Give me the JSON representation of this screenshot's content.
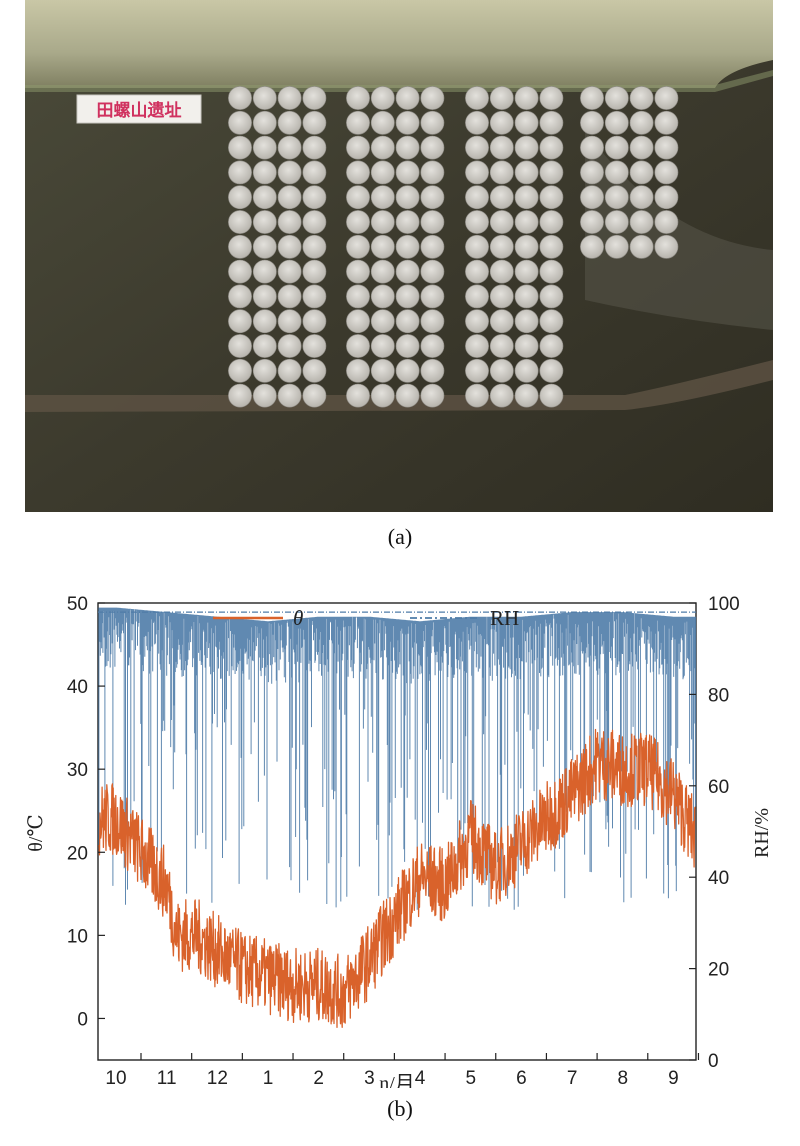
{
  "figure": {
    "panel_a_label": "(a)",
    "panel_b_label": "(b)",
    "site_sign": "田螺山遗址"
  },
  "photo": {
    "subject": "sample discs on soil",
    "block_columns": [
      4,
      4,
      4,
      4
    ],
    "block_rows": [
      13,
      13,
      13,
      7
    ],
    "colors": {
      "soil_dark": "#3c3a2d",
      "rock_top": "#a8aa8a",
      "disc": "#d4d2cc",
      "sign_text": "#d0315f"
    }
  },
  "chart_data": {
    "type": "line",
    "title": "",
    "xlabel": "n/月",
    "ylabel_left": "θ/℃",
    "ylabel_right": "RH/%",
    "x_ticks": [
      "10",
      "11",
      "12",
      "1",
      "2",
      "3",
      "4",
      "5",
      "6",
      "7",
      "8",
      "9"
    ],
    "ylim_left": [
      -5,
      50
    ],
    "yticks_left": [
      0,
      10,
      20,
      30,
      40,
      50
    ],
    "ylim_right": [
      0,
      100
    ],
    "yticks_right": [
      0,
      20,
      40,
      60,
      80,
      100
    ],
    "legend_position": "top",
    "grid": false,
    "series": [
      {
        "name": "θ",
        "axis": "left",
        "color": "#d9622b",
        "style": "solid",
        "x_month_index": [
          0,
          0.5,
          1,
          1.2,
          1.6,
          2,
          2.5,
          3,
          3.5,
          4,
          4.5,
          5,
          5.5,
          6,
          6.5,
          7,
          7.5,
          8,
          8.5,
          9,
          9.5,
          10,
          10.5,
          11,
          11.5,
          12
        ],
        "values": [
          24,
          20,
          16,
          10,
          10,
          8,
          6,
          5,
          4,
          4,
          3,
          7,
          12,
          17,
          16,
          22,
          18,
          21,
          24,
          27,
          31,
          30,
          30,
          27,
          21,
          20
        ]
      },
      {
        "name": "RH",
        "axis": "right",
        "color": "#4f7ca8",
        "style": "dash-dot",
        "x_month_index": [
          0,
          1,
          2,
          3,
          4,
          5,
          6,
          7,
          8,
          9,
          10,
          11,
          12
        ],
        "values": [
          99,
          98,
          97,
          96,
          97,
          97,
          96,
          97,
          97,
          98,
          98,
          97,
          97
        ]
      }
    ]
  }
}
